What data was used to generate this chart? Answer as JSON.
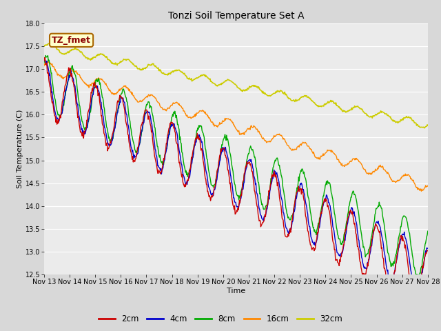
{
  "title": "Tonzi Soil Temperature Set A",
  "xlabel": "Time",
  "ylabel": "Soil Temperature (C)",
  "ylim": [
    12.5,
    18.0
  ],
  "yticks": [
    12.5,
    13.0,
    13.5,
    14.0,
    14.5,
    15.0,
    15.5,
    16.0,
    16.5,
    17.0,
    17.5,
    18.0
  ],
  "plot_bg_color": "#e8e8e8",
  "axes_bg_color": "#f2f2f2",
  "series_colors": {
    "2cm": "#cc0000",
    "4cm": "#0000cc",
    "8cm": "#00aa00",
    "16cm": "#ff8800",
    "32cm": "#cccc00"
  },
  "legend_label": "TZ_fmet",
  "x_tick_labels": [
    "Nov 13",
    "Nov 14",
    "Nov 15",
    "Nov 16",
    "Nov 17",
    "Nov 18",
    "Nov 19",
    "Nov 20",
    "Nov 21",
    "Nov 22",
    "Nov 23",
    "Nov 24",
    "Nov 25",
    "Nov 26",
    "Nov 27",
    "Nov 28"
  ],
  "n_points": 720,
  "days": 15
}
